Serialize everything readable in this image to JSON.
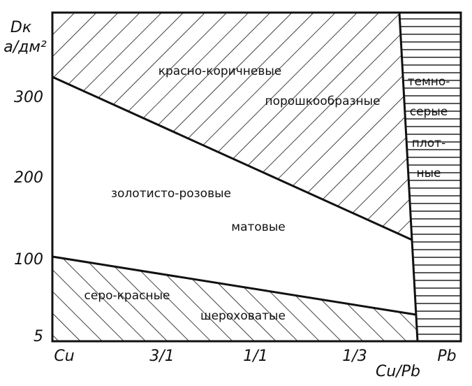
{
  "axes": {
    "y_label": "Dк",
    "y_unit": "а/дм²",
    "x_label": "Cu/Pb",
    "y_ticks": [
      "300",
      "200",
      "100",
      "5"
    ],
    "x_ticks": [
      "Cu",
      "3/1",
      "1/1",
      "1/3",
      "Pb"
    ]
  },
  "regions": [
    {
      "lines": [
        "красно-коричневые",
        "порошкообразные"
      ]
    },
    {
      "lines": [
        "золотисто-розовые",
        "матовые"
      ]
    },
    {
      "lines": [
        "серо-красные",
        "шероховатые"
      ]
    },
    {
      "lines": [
        "темно-",
        "серые",
        "плот-",
        "ные"
      ]
    }
  ]
}
